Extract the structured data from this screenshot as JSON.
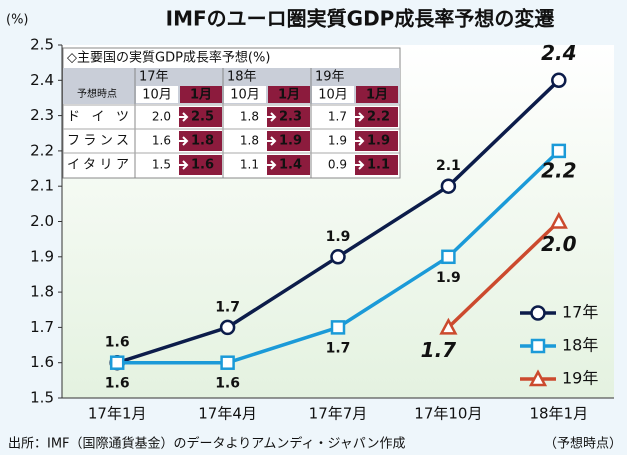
{
  "chart_data": {
    "type": "line",
    "title": "IMFのユーロ圏実質GDP成長率予想の変遷",
    "y_label": "(%)",
    "x_label": "（予想時点）",
    "source": "出所：IMF（国際通貨基金）のデータよりアムンディ・ジャパン作成",
    "categories": [
      "17年1月",
      "17年4月",
      "17年7月",
      "17年10月",
      "18年1月"
    ],
    "series": [
      {
        "name": "17年",
        "color": "#0c1c4a",
        "marker": "circle",
        "values": [
          1.6,
          1.7,
          1.9,
          2.1,
          2.4
        ]
      },
      {
        "name": "18年",
        "color": "#1b9ad8",
        "marker": "square",
        "values": [
          1.6,
          1.6,
          1.7,
          1.9,
          2.2
        ]
      },
      {
        "name": "19年",
        "color": "#cc4a2e",
        "marker": "triangle",
        "values": [
          null,
          null,
          null,
          1.7,
          2.0
        ],
        "value_labels": [
          null,
          null,
          null,
          "1.7",
          "2.0"
        ]
      }
    ],
    "ylim": [
      1.5,
      2.5
    ],
    "yticks": [
      1.5,
      1.6,
      1.7,
      1.8,
      1.9,
      {
        "value": 2,
        "label": "2.0"
      },
      2.1,
      2.2,
      2.3,
      2.4,
      2.5
    ],
    "legend": "lower right"
  },
  "table": {
    "title": "◇主要国の実質GDP成長率予想(%)",
    "years": [
      "17年",
      "18年",
      "19年"
    ],
    "time_label": "予想時点",
    "months": [
      "10月",
      "1月"
    ],
    "rows": [
      {
        "country": "ドイツ",
        "values": [
          [
            "2.0",
            "2.5"
          ],
          [
            "1.8",
            "2.3"
          ],
          [
            "1.7",
            "2.2"
          ]
        ]
      },
      {
        "country": "フランス",
        "values": [
          [
            "1.6",
            "1.8"
          ],
          [
            "1.8",
            "1.9"
          ],
          [
            "1.9",
            "1.9"
          ]
        ]
      },
      {
        "country": "イタリア",
        "values": [
          [
            "1.5",
            "1.6"
          ],
          [
            "1.1",
            "1.4"
          ],
          [
            "0.9",
            "1.1"
          ]
        ]
      }
    ]
  }
}
